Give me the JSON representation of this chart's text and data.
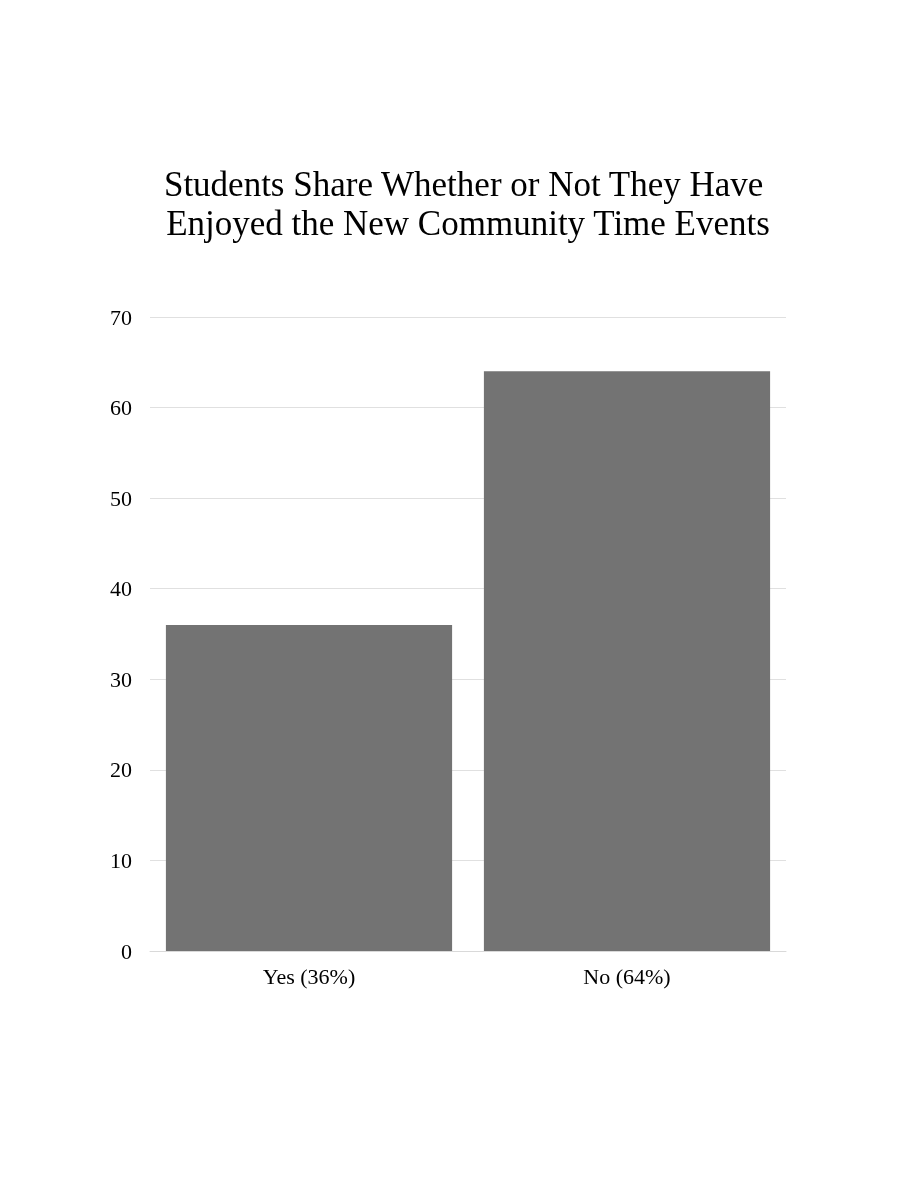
{
  "chart_data": {
    "type": "bar",
    "title": "Students Share Whether or Not They Have Enjoyed the New Community Time Events",
    "categories": [
      "Yes (36%)",
      "No (64%)"
    ],
    "values": [
      36,
      64
    ],
    "color": "#737373",
    "ylim": [
      0,
      70
    ],
    "yticks": [
      0,
      10,
      20,
      30,
      40,
      50,
      60,
      70
    ],
    "grid": "y"
  }
}
